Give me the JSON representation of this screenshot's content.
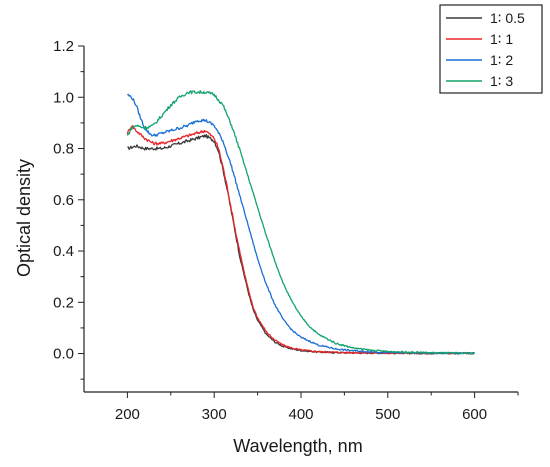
{
  "chart_data": {
    "type": "line",
    "title": "",
    "xlabel": "Wavelength, nm",
    "ylabel": "Optical density",
    "xlim": [
      150,
      650
    ],
    "ylim": [
      -0.15,
      1.2
    ],
    "xticks": [
      200,
      300,
      400,
      500,
      600
    ],
    "yticks": [
      0.0,
      0.2,
      0.4,
      0.6,
      0.8,
      1.0,
      1.2
    ],
    "xtick_labels": [
      "200",
      "300",
      "400",
      "500",
      "600"
    ],
    "ytick_labels": [
      "0.0",
      "0.2",
      "0.4",
      "0.6",
      "0.8",
      "1.0",
      "1.2"
    ],
    "grid": false,
    "legend": "top-right",
    "series": [
      {
        "name": "1∶ 0.5",
        "color": "#3a3a3a",
        "points": [
          [
            200,
            0.8
          ],
          [
            210,
            0.81
          ],
          [
            220,
            0.8
          ],
          [
            230,
            0.8
          ],
          [
            240,
            0.8
          ],
          [
            250,
            0.81
          ],
          [
            260,
            0.82
          ],
          [
            270,
            0.83
          ],
          [
            280,
            0.84
          ],
          [
            290,
            0.85
          ],
          [
            300,
            0.83
          ],
          [
            305,
            0.79
          ],
          [
            310,
            0.72
          ],
          [
            315,
            0.64
          ],
          [
            320,
            0.55
          ],
          [
            325,
            0.46
          ],
          [
            330,
            0.37
          ],
          [
            335,
            0.3
          ],
          [
            340,
            0.23
          ],
          [
            345,
            0.17
          ],
          [
            350,
            0.13
          ],
          [
            360,
            0.075
          ],
          [
            370,
            0.045
          ],
          [
            380,
            0.027
          ],
          [
            390,
            0.018
          ],
          [
            400,
            0.012
          ],
          [
            420,
            0.006
          ],
          [
            450,
            0.003
          ],
          [
            500,
            0.002
          ],
          [
            550,
            0.001
          ],
          [
            600,
            0.001
          ]
        ]
      },
      {
        "name": "1∶ 1",
        "color": "#e8262b",
        "points": [
          [
            200,
            0.86
          ],
          [
            205,
            0.89
          ],
          [
            210,
            0.87
          ],
          [
            220,
            0.84
          ],
          [
            230,
            0.82
          ],
          [
            240,
            0.82
          ],
          [
            250,
            0.83
          ],
          [
            260,
            0.84
          ],
          [
            270,
            0.85
          ],
          [
            280,
            0.86
          ],
          [
            290,
            0.87
          ],
          [
            300,
            0.84
          ],
          [
            305,
            0.8
          ],
          [
            310,
            0.73
          ],
          [
            315,
            0.65
          ],
          [
            320,
            0.56
          ],
          [
            325,
            0.47
          ],
          [
            330,
            0.39
          ],
          [
            335,
            0.31
          ],
          [
            340,
            0.24
          ],
          [
            345,
            0.18
          ],
          [
            350,
            0.14
          ],
          [
            360,
            0.085
          ],
          [
            370,
            0.052
          ],
          [
            380,
            0.032
          ],
          [
            390,
            0.021
          ],
          [
            400,
            0.014
          ],
          [
            420,
            0.007
          ],
          [
            450,
            0.004
          ],
          [
            500,
            0.002
          ],
          [
            550,
            0.001
          ],
          [
            600,
            0.001
          ]
        ]
      },
      {
        "name": "1∶ 2",
        "color": "#1a6fd4",
        "points": [
          [
            200,
            1.01
          ],
          [
            205,
            1.0
          ],
          [
            210,
            0.97
          ],
          [
            215,
            0.92
          ],
          [
            220,
            0.88
          ],
          [
            225,
            0.86
          ],
          [
            230,
            0.85
          ],
          [
            240,
            0.86
          ],
          [
            250,
            0.87
          ],
          [
            260,
            0.88
          ],
          [
            270,
            0.89
          ],
          [
            280,
            0.91
          ],
          [
            290,
            0.91
          ],
          [
            295,
            0.9
          ],
          [
            300,
            0.89
          ],
          [
            310,
            0.83
          ],
          [
            320,
            0.73
          ],
          [
            330,
            0.61
          ],
          [
            340,
            0.49
          ],
          [
            350,
            0.37
          ],
          [
            360,
            0.27
          ],
          [
            370,
            0.19
          ],
          [
            380,
            0.13
          ],
          [
            390,
            0.09
          ],
          [
            400,
            0.063
          ],
          [
            420,
            0.033
          ],
          [
            440,
            0.018
          ],
          [
            460,
            0.011
          ],
          [
            480,
            0.007
          ],
          [
            500,
            0.004
          ],
          [
            550,
            0.002
          ],
          [
            600,
            0.001
          ]
        ]
      },
      {
        "name": "1∶ 3",
        "color": "#12a36b",
        "points": [
          [
            200,
            0.85
          ],
          [
            205,
            0.88
          ],
          [
            210,
            0.89
          ],
          [
            220,
            0.88
          ],
          [
            230,
            0.89
          ],
          [
            240,
            0.93
          ],
          [
            250,
            0.97
          ],
          [
            260,
            1.0
          ],
          [
            270,
            1.02
          ],
          [
            280,
            1.02
          ],
          [
            290,
            1.02
          ],
          [
            300,
            1.01
          ],
          [
            310,
            0.97
          ],
          [
            320,
            0.89
          ],
          [
            330,
            0.79
          ],
          [
            340,
            0.68
          ],
          [
            350,
            0.57
          ],
          [
            360,
            0.46
          ],
          [
            370,
            0.36
          ],
          [
            380,
            0.27
          ],
          [
            390,
            0.2
          ],
          [
            400,
            0.145
          ],
          [
            410,
            0.105
          ],
          [
            420,
            0.075
          ],
          [
            440,
            0.04
          ],
          [
            460,
            0.022
          ],
          [
            480,
            0.013
          ],
          [
            500,
            0.008
          ],
          [
            550,
            0.003
          ],
          [
            600,
            0.001
          ]
        ]
      }
    ]
  }
}
